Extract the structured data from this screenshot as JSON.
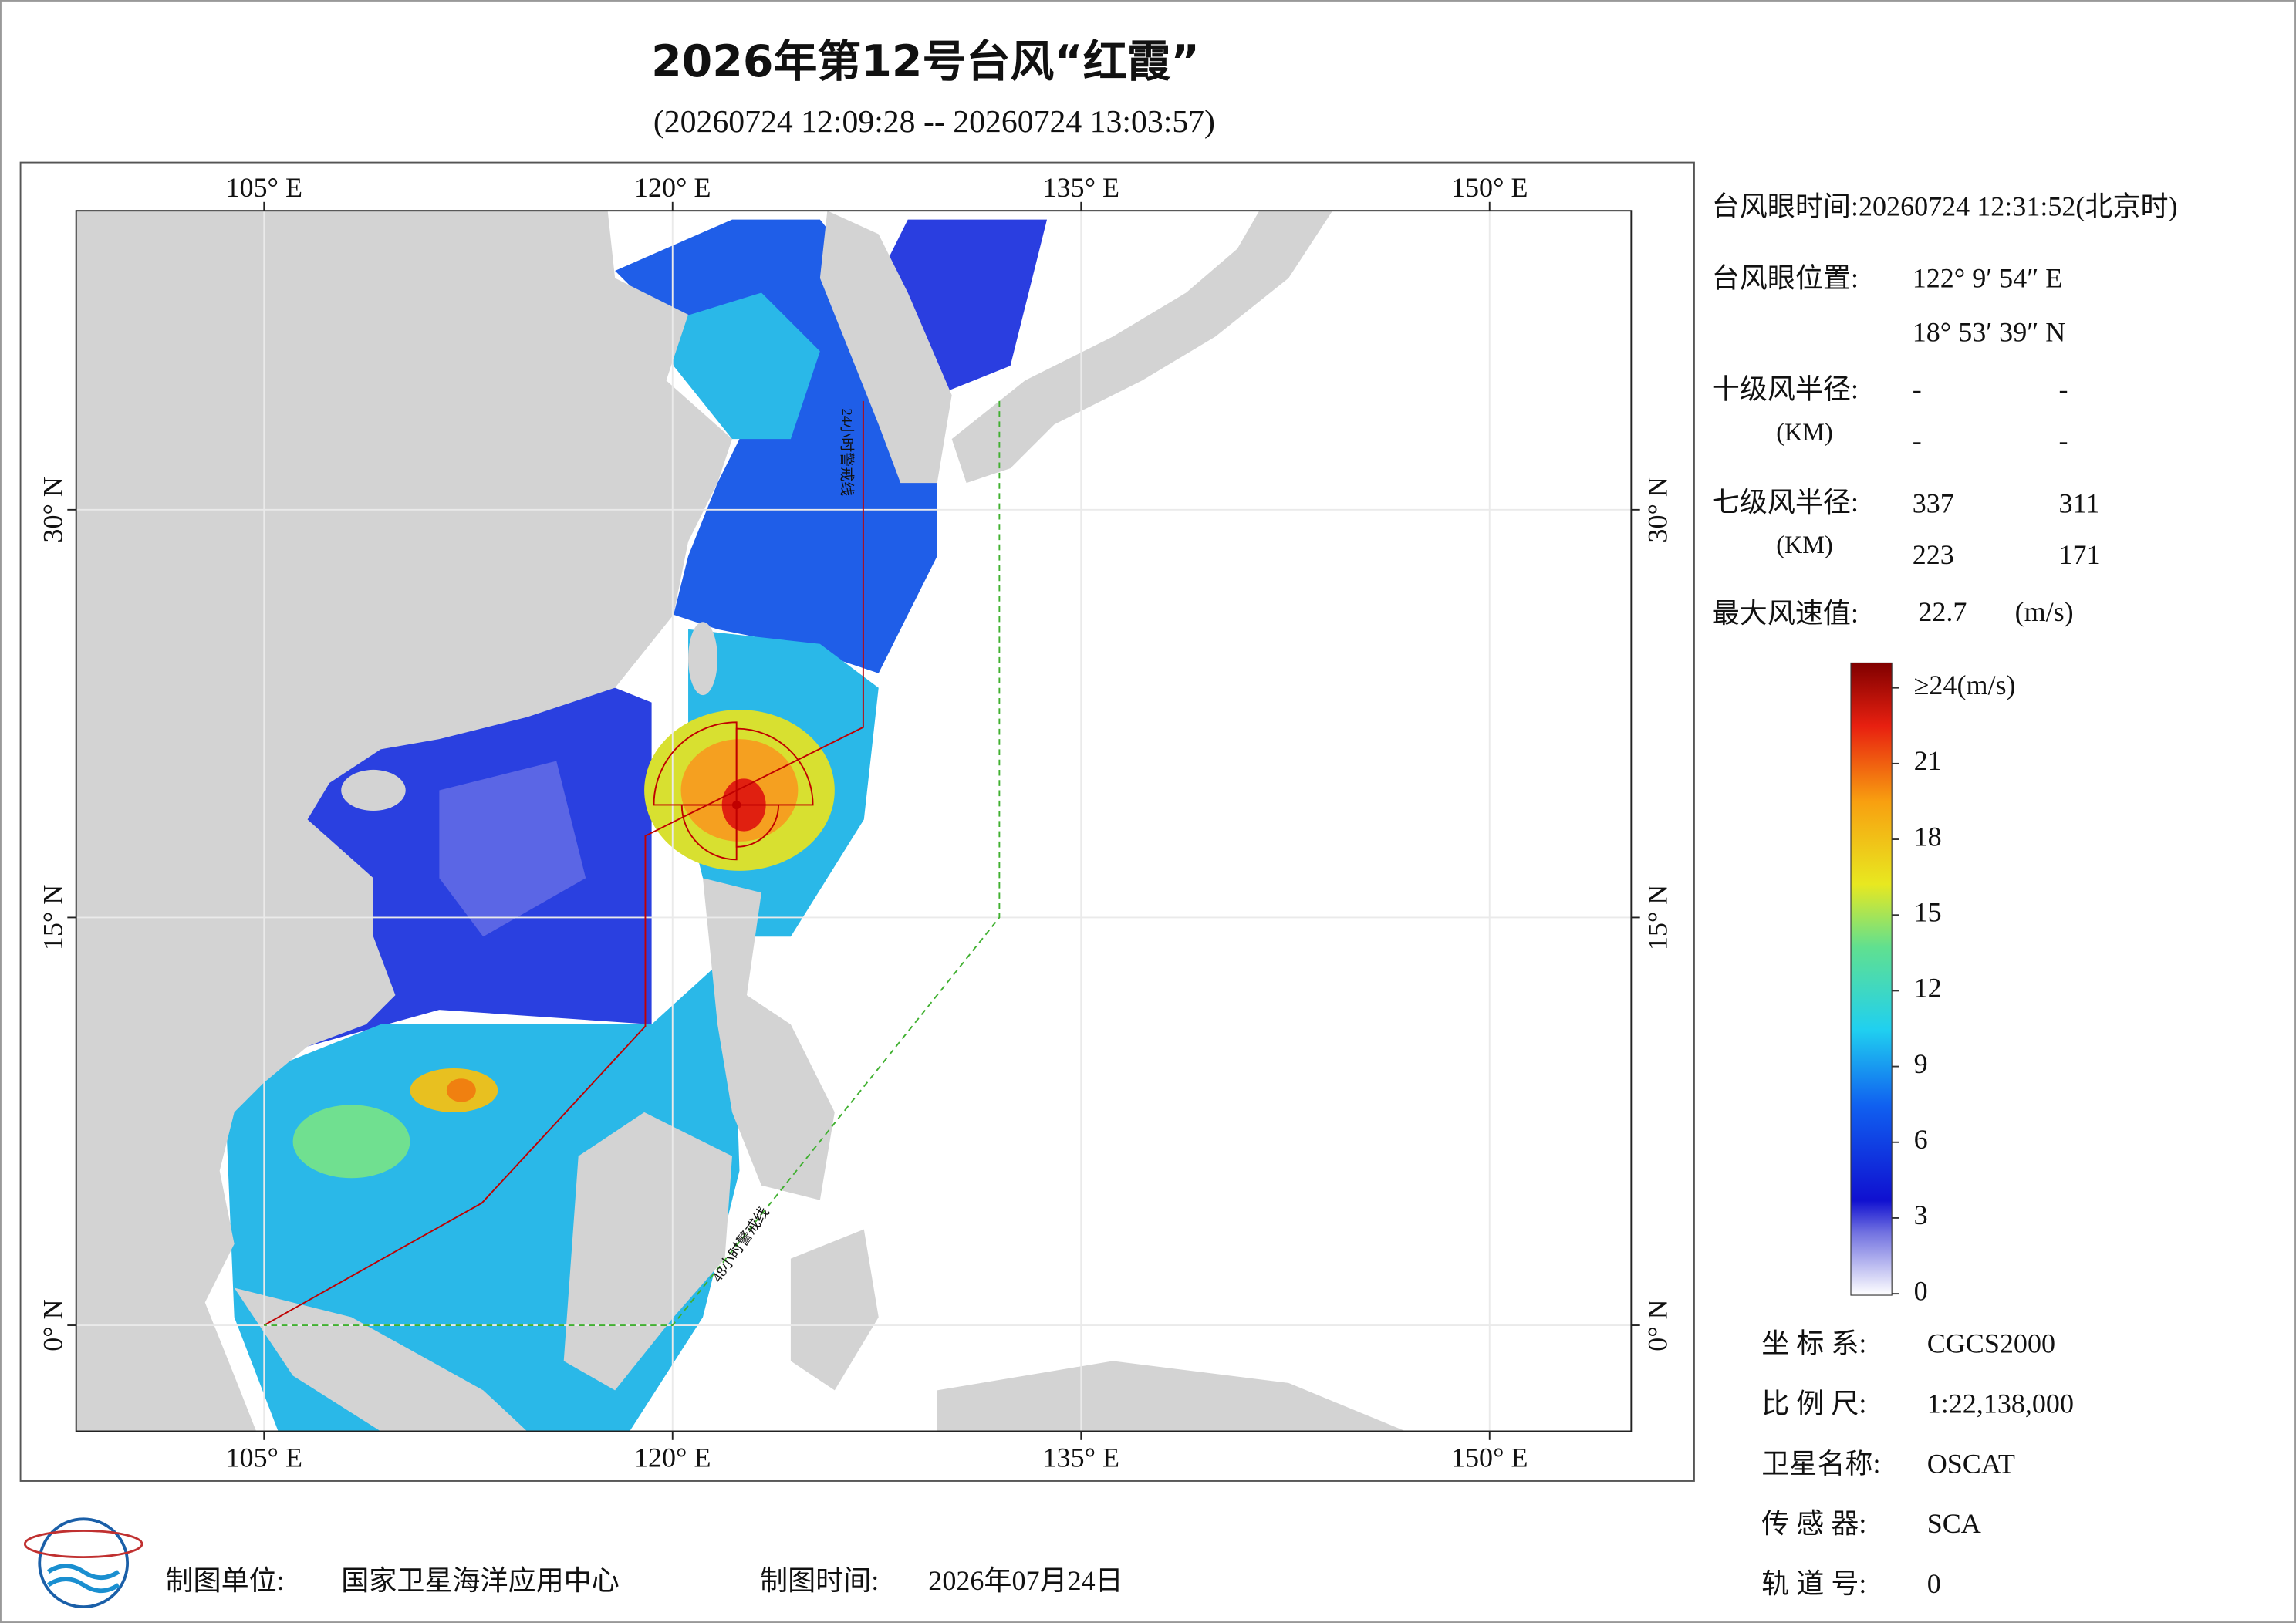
{
  "header": {
    "title": "2026年第12号台风“红霞”",
    "subtitle": "(20260724 12:09:28 -- 20260724 13:03:57)"
  },
  "map": {
    "lon_range": [
      98.1,
      155.2
    ],
    "lat_range": [
      -3.9,
      41
    ],
    "lon_ticks": [
      {
        "value": 105,
        "label": "105° E"
      },
      {
        "value": 120,
        "label": "120° E"
      },
      {
        "value": 135,
        "label": "135° E"
      },
      {
        "value": 150,
        "label": "150° E"
      }
    ],
    "lat_ticks": [
      {
        "value": 0,
        "label": "0° N"
      },
      {
        "value": 15,
        "label": "15° N"
      },
      {
        "value": 30,
        "label": "30° N"
      }
    ],
    "warning_lines": [
      {
        "label": "24小时警戒线",
        "points": [
          [
            127,
            34
          ],
          [
            127,
            22
          ],
          [
            119,
            18
          ],
          [
            119,
            11
          ],
          [
            113,
            4.5
          ],
          [
            105,
            0
          ]
        ]
      },
      {
        "label": "48小时警戒线",
        "points": [
          [
            132,
            34
          ],
          [
            132,
            15
          ],
          [
            120,
            0
          ],
          [
            105,
            0
          ]
        ]
      }
    ]
  },
  "info": {
    "eye_time": "台风眼时间:20260724 12:31:52(北京时)",
    "eye_position": {
      "label": "台风眼位置:",
      "lon": "122° 9′ 54″ E",
      "lat": "18° 53′ 39″ N"
    },
    "level10": {
      "label": "十级风半径:",
      "unit": "(KM)",
      "values": [
        "-",
        "-",
        "-",
        "-"
      ]
    },
    "level7": {
      "label": "七级风半径:",
      "unit": "(KM)",
      "values": [
        337,
        311,
        223,
        171
      ]
    },
    "max_wind": {
      "label": "最大风速值:",
      "value": 22.7,
      "unit": "(m/s)"
    }
  },
  "colorbar": {
    "range": [
      0,
      24
    ],
    "ticks": [
      {
        "value": 24,
        "label": "≥24(m/s)"
      },
      21,
      18,
      15,
      12,
      9,
      6,
      3,
      0
    ]
  },
  "meta": [
    {
      "label": "坐 标 系:",
      "value": "CGCS2000"
    },
    {
      "label": "比 例 尺:",
      "value": "1:22,138,000"
    },
    {
      "label": "卫星名称:",
      "value": "OSCAT"
    },
    {
      "label": "传 感 器:",
      "value": "SCA"
    },
    {
      "label": "轨 道 号:",
      "value": 0
    }
  ],
  "footer": {
    "unit_label": "制图单位:",
    "unit": "国家卫星海洋应用中心",
    "time_label": "制图时间:",
    "time": "2026年07月24日"
  }
}
